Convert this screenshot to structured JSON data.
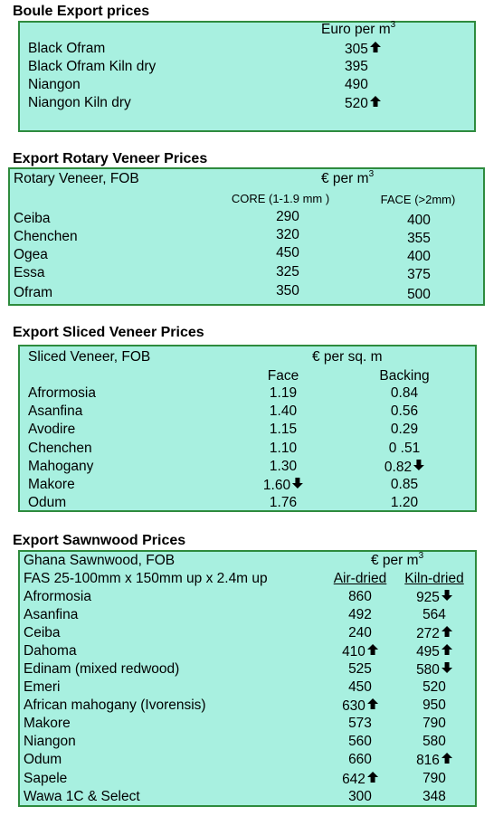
{
  "boule": {
    "title": "Boule Export prices",
    "unit_main": "Euro per m",
    "unit_sup": "3",
    "rows": [
      {
        "name": "Black Ofram",
        "price": "305",
        "trend": "up"
      },
      {
        "name": "Black Ofram  Kiln dry",
        "price": "395",
        "trend": ""
      },
      {
        "name": "Niangon",
        "price": "490",
        "trend": ""
      },
      {
        "name": "Niangon Kiln dry",
        "price": "520",
        "trend": "up"
      }
    ]
  },
  "rotary": {
    "title": "Export Rotary Veneer Prices",
    "subtitle": "Rotary Veneer,  FOB",
    "unit_main": "€  per m",
    "unit_sup": "3",
    "col1": "CORE (1-1.9 mm )",
    "col2": "FACE (>2mm)",
    "rows": [
      {
        "name": "Ceiba",
        "core": "290",
        "face": "400"
      },
      {
        "name": "Chenchen",
        "core": "320",
        "face": "355"
      },
      {
        "name": "Ogea",
        "core": "450",
        "face": "400"
      },
      {
        "name": "Essa",
        "core": "325",
        "face": "375"
      },
      {
        "name": "Ofram",
        "core": "350",
        "face": "500"
      }
    ]
  },
  "sliced": {
    "title": "Export Sliced Veneer Prices",
    "subtitle": "Sliced Veneer, FOB",
    "unit": "€ per sq. m",
    "col1": "Face",
    "col2": "Backing",
    "rows": [
      {
        "name": "Afrormosia",
        "face": "1.19",
        "face_trend": "",
        "backing": "0.84",
        "backing_trend": ""
      },
      {
        "name": "Asanfina",
        "face": "1.40",
        "face_trend": "",
        "backing": "0.56",
        "backing_trend": ""
      },
      {
        "name": "Avodire",
        "face": "1.15",
        "face_trend": "",
        "backing": "0.29",
        "backing_trend": ""
      },
      {
        "name": "Chenchen",
        "face": "1.10",
        "face_trend": "",
        "backing": "0 .51",
        "backing_trend": ""
      },
      {
        "name": "Mahogany",
        "face": "1.30",
        "face_trend": "",
        "backing": "0.82",
        "backing_trend": "down"
      },
      {
        "name": "Makore",
        "face": "1.60",
        "face_trend": "down",
        "backing": "0.85",
        "backing_trend": ""
      },
      {
        "name": "Odum",
        "face": "1.76",
        "face_trend": "",
        "backing": "1.20",
        "backing_trend": ""
      }
    ]
  },
  "sawn": {
    "title": "Export Sawnwood Prices",
    "subtitle": "Ghana Sawnwood, FOB",
    "spec": "FAS 25-100mm x 150mm up x 2.4m up",
    "unit_main": "€ per m",
    "unit_sup": "3",
    "col1": "Air-dried",
    "col2": "Kiln-dried",
    "rows": [
      {
        "name": "Afrormosia",
        "air": "860",
        "air_trend": "",
        "kiln": "925",
        "kiln_trend": "down"
      },
      {
        "name": "Asanfina",
        "air": "492",
        "air_trend": "",
        "kiln": "564",
        "kiln_trend": ""
      },
      {
        "name": "Ceiba",
        "air": "240",
        "air_trend": "",
        "kiln": "272",
        "kiln_trend": "up"
      },
      {
        "name": "Dahoma",
        "air": "410",
        "air_trend": "up",
        "kiln": "495",
        "kiln_trend": "up"
      },
      {
        "name": "Edinam (mixed redwood)",
        "air": "525",
        "air_trend": "",
        "kiln": "580",
        "kiln_trend": "down"
      },
      {
        "name": "Emeri",
        "air": "450",
        "air_trend": "",
        "kiln": "520",
        "kiln_trend": ""
      },
      {
        "name": "African mahogany (Ivorensis)",
        "air": "630",
        "air_trend": "up",
        "kiln": "950",
        "kiln_trend": ""
      },
      {
        "name": "Makore",
        "air": "573",
        "air_trend": "",
        "kiln": "790",
        "kiln_trend": ""
      },
      {
        "name": "Niangon",
        "air": "560",
        "air_trend": "",
        "kiln": "580",
        "kiln_trend": ""
      },
      {
        "name": "Odum",
        "air": "660",
        "air_trend": "",
        "kiln": "816",
        "kiln_trend": "up"
      },
      {
        "name": "Sapele",
        "air": "642",
        "air_trend": "up",
        "kiln": "790",
        "kiln_trend": ""
      },
      {
        "name": "Wawa 1C & Select",
        "air": "300",
        "air_trend": "",
        "kiln": "348",
        "kiln_trend": ""
      }
    ]
  },
  "icons": {
    "up": "arrow-up-icon",
    "down": "arrow-down-icon"
  },
  "colors": {
    "box_fill": "#a8f0e0",
    "box_border": "#2e8b3e"
  }
}
